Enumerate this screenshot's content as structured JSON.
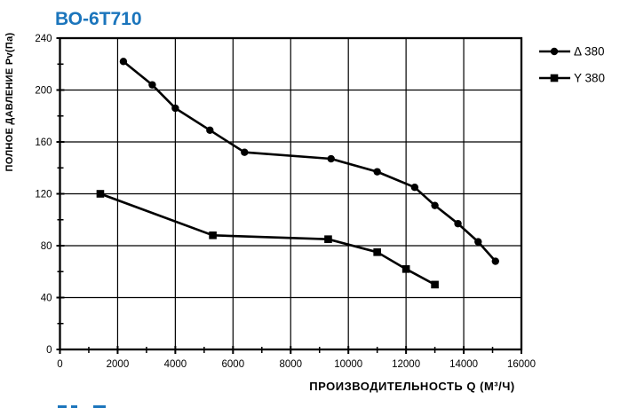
{
  "page": {
    "background": "#ffffff",
    "accent_blue": "#1B75BC"
  },
  "chart_data": {
    "type": "line",
    "title": "ВО-6Т710",
    "xlabel": "ПРОИЗВОДИТЕЛЬНОСТЬ  Q  (М³/Ч)",
    "ylabel": "ПОЛНОЕ ДАВЛЕНИЕ  Pv(Па)",
    "xlim": [
      0,
      16000
    ],
    "ylim": [
      0,
      240
    ],
    "x_ticks": [
      0,
      2000,
      4000,
      6000,
      8000,
      10000,
      12000,
      14000,
      16000
    ],
    "y_ticks": [
      0,
      40,
      80,
      120,
      160,
      200,
      240
    ],
    "x_minor_step": 1000,
    "y_minor_step": 20,
    "grid": true,
    "legend_position": "right-top",
    "line_color": "#000000",
    "series": [
      {
        "name": "Δ 380",
        "marker": "circle",
        "points": [
          [
            2200,
            222
          ],
          [
            3200,
            204
          ],
          [
            4000,
            186
          ],
          [
            5200,
            169
          ],
          [
            6400,
            152
          ],
          [
            9400,
            147
          ],
          [
            11000,
            137
          ],
          [
            12300,
            125
          ],
          [
            13000,
            111
          ],
          [
            13800,
            97
          ],
          [
            14500,
            83
          ],
          [
            15100,
            68
          ]
        ]
      },
      {
        "name": "Y 380",
        "marker": "square",
        "points": [
          [
            1400,
            120
          ],
          [
            5300,
            88
          ],
          [
            9300,
            85
          ],
          [
            11000,
            75
          ],
          [
            12000,
            62
          ],
          [
            13000,
            50
          ]
        ]
      }
    ]
  },
  "cutoff_text": {
    "note": "partially visible blue text cut off at bottom edge"
  }
}
